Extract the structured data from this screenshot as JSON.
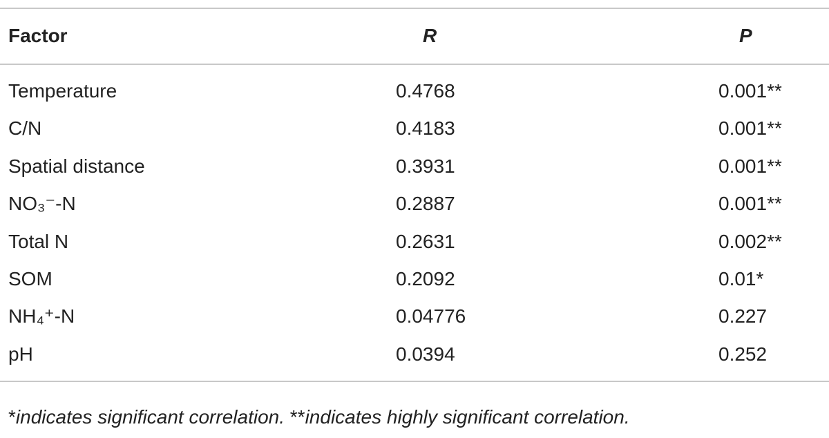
{
  "table": {
    "header": [
      "Factor",
      "R",
      "P"
    ],
    "rows": [
      [
        "Temperature",
        0.4768,
        "0.001**"
      ],
      [
        "C/N",
        0.4183,
        "0.001**"
      ],
      [
        "Spatial distance",
        0.3931,
        "0.001**"
      ],
      [
        "NO₃⁻-N",
        0.2887,
        "0.001**"
      ],
      [
        "Total N",
        0.2631,
        "0.002**"
      ],
      [
        "SOM",
        0.2092,
        "0.01*"
      ],
      [
        "NH₄⁺-N",
        0.04776,
        "0.227"
      ],
      [
        "pH",
        0.0394,
        "0.252"
      ]
    ]
  },
  "footnote": [
    "*",
    "indicates significant correlation. ",
    "**",
    "indicates highly significant correlation."
  ]
}
